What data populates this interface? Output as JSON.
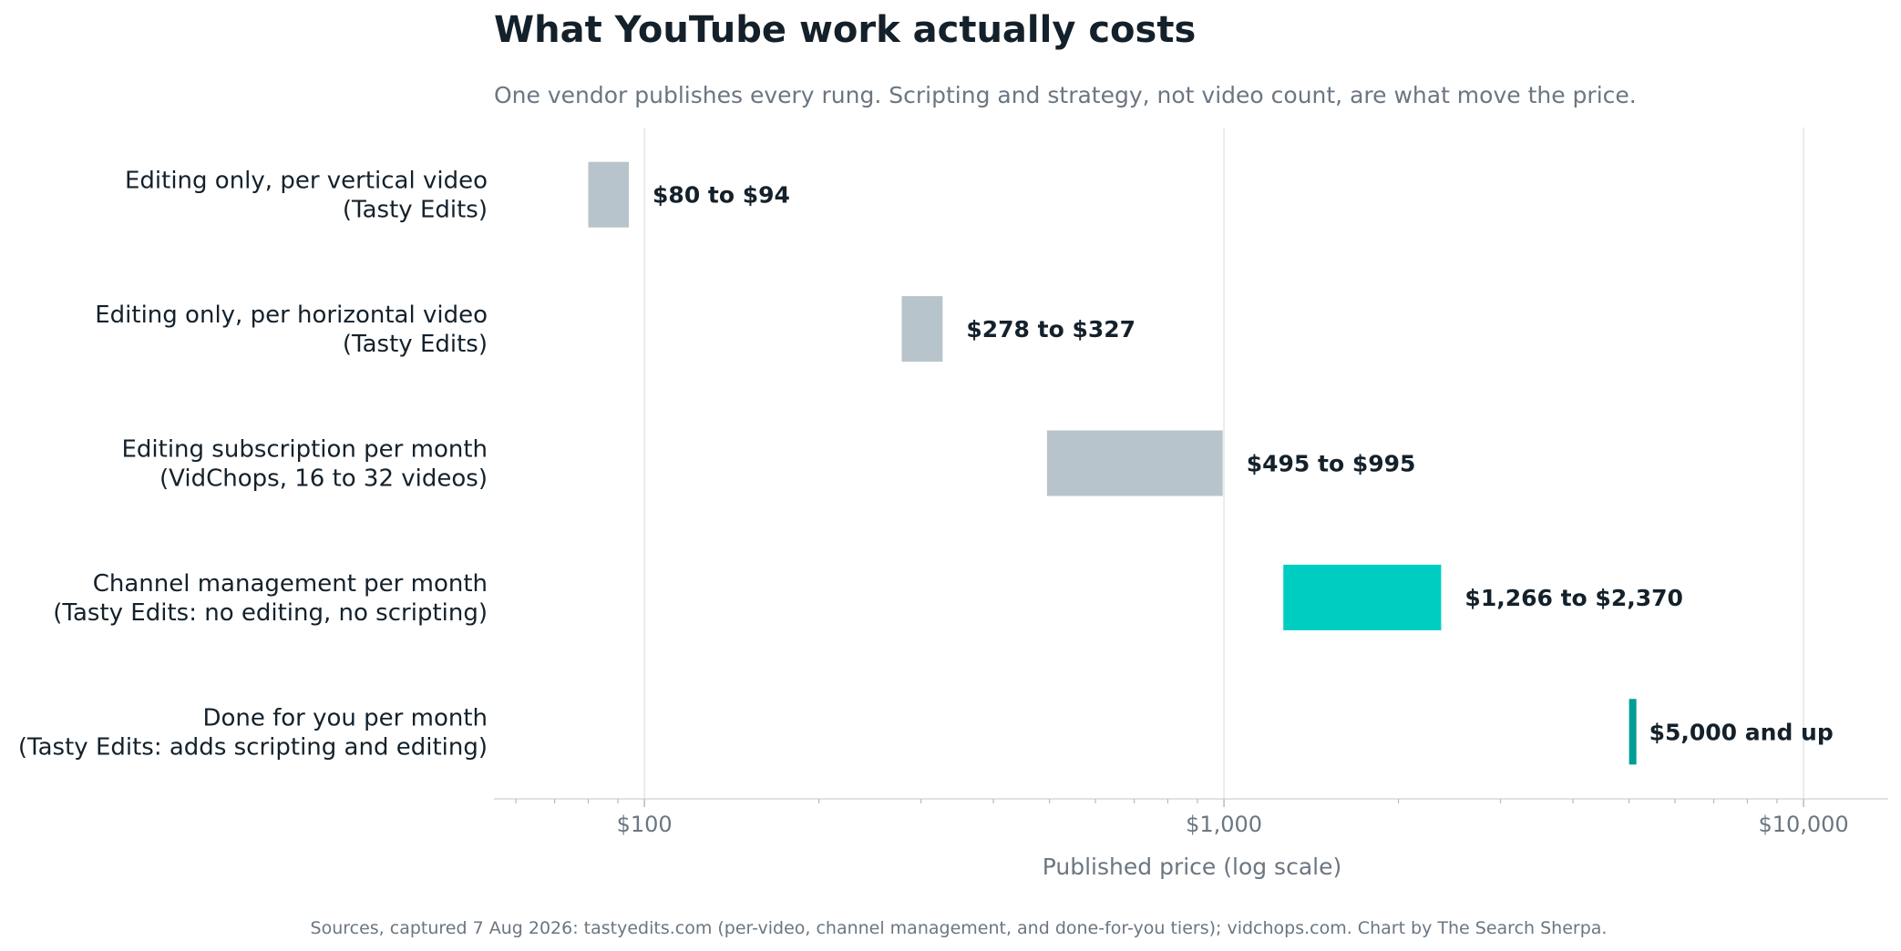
{
  "chart_data": {
    "type": "bar",
    "orientation": "horizontal-range",
    "title": "What YouTube work actually costs",
    "subtitle": "One vendor publishes every rung. Scripting and strategy, not video count, are what move the price.",
    "xlabel": "Published price (log scale)",
    "xscale": "log",
    "xlim": [
      55,
      14000
    ],
    "grid": "vertical at major ticks",
    "x_ticks": [
      100,
      1000,
      10000
    ],
    "x_tick_labels": [
      "$100",
      "$1,000",
      "$10,000"
    ],
    "categories": [
      [
        "Editing only, per vertical video",
        "(Tasty Edits)"
      ],
      [
        "Editing only, per horizontal video",
        "(Tasty Edits)"
      ],
      [
        "Editing subscription per month",
        "(VidChops, 16 to 32 videos)"
      ],
      [
        "Channel management per month",
        "(Tasty Edits: no editing, no scripting)"
      ],
      [
        "Done for you per month",
        "(Tasty Edits: adds scripting and editing)"
      ]
    ],
    "ranges": [
      {
        "low": 80,
        "high": 94,
        "label": "$80 to $94",
        "color": "#b8c4cb"
      },
      {
        "low": 278,
        "high": 327,
        "label": "$278 to $327",
        "color": "#b8c4cb"
      },
      {
        "low": 495,
        "high": 995,
        "label": "$495 to $995",
        "color": "#b8c4cb"
      },
      {
        "low": 1266,
        "high": 2370,
        "label": "$1,266 to $2,370",
        "color": "#00cdc1"
      },
      {
        "low": 5000,
        "high": null,
        "label": "$5,000 and up",
        "color": "#009e94"
      }
    ],
    "source": "Sources, captured 7 Aug 2026: tastyedits.com (per-video, channel management, and done-for-you tiers); vidchops.com. Chart by The Search Sherpa."
  }
}
